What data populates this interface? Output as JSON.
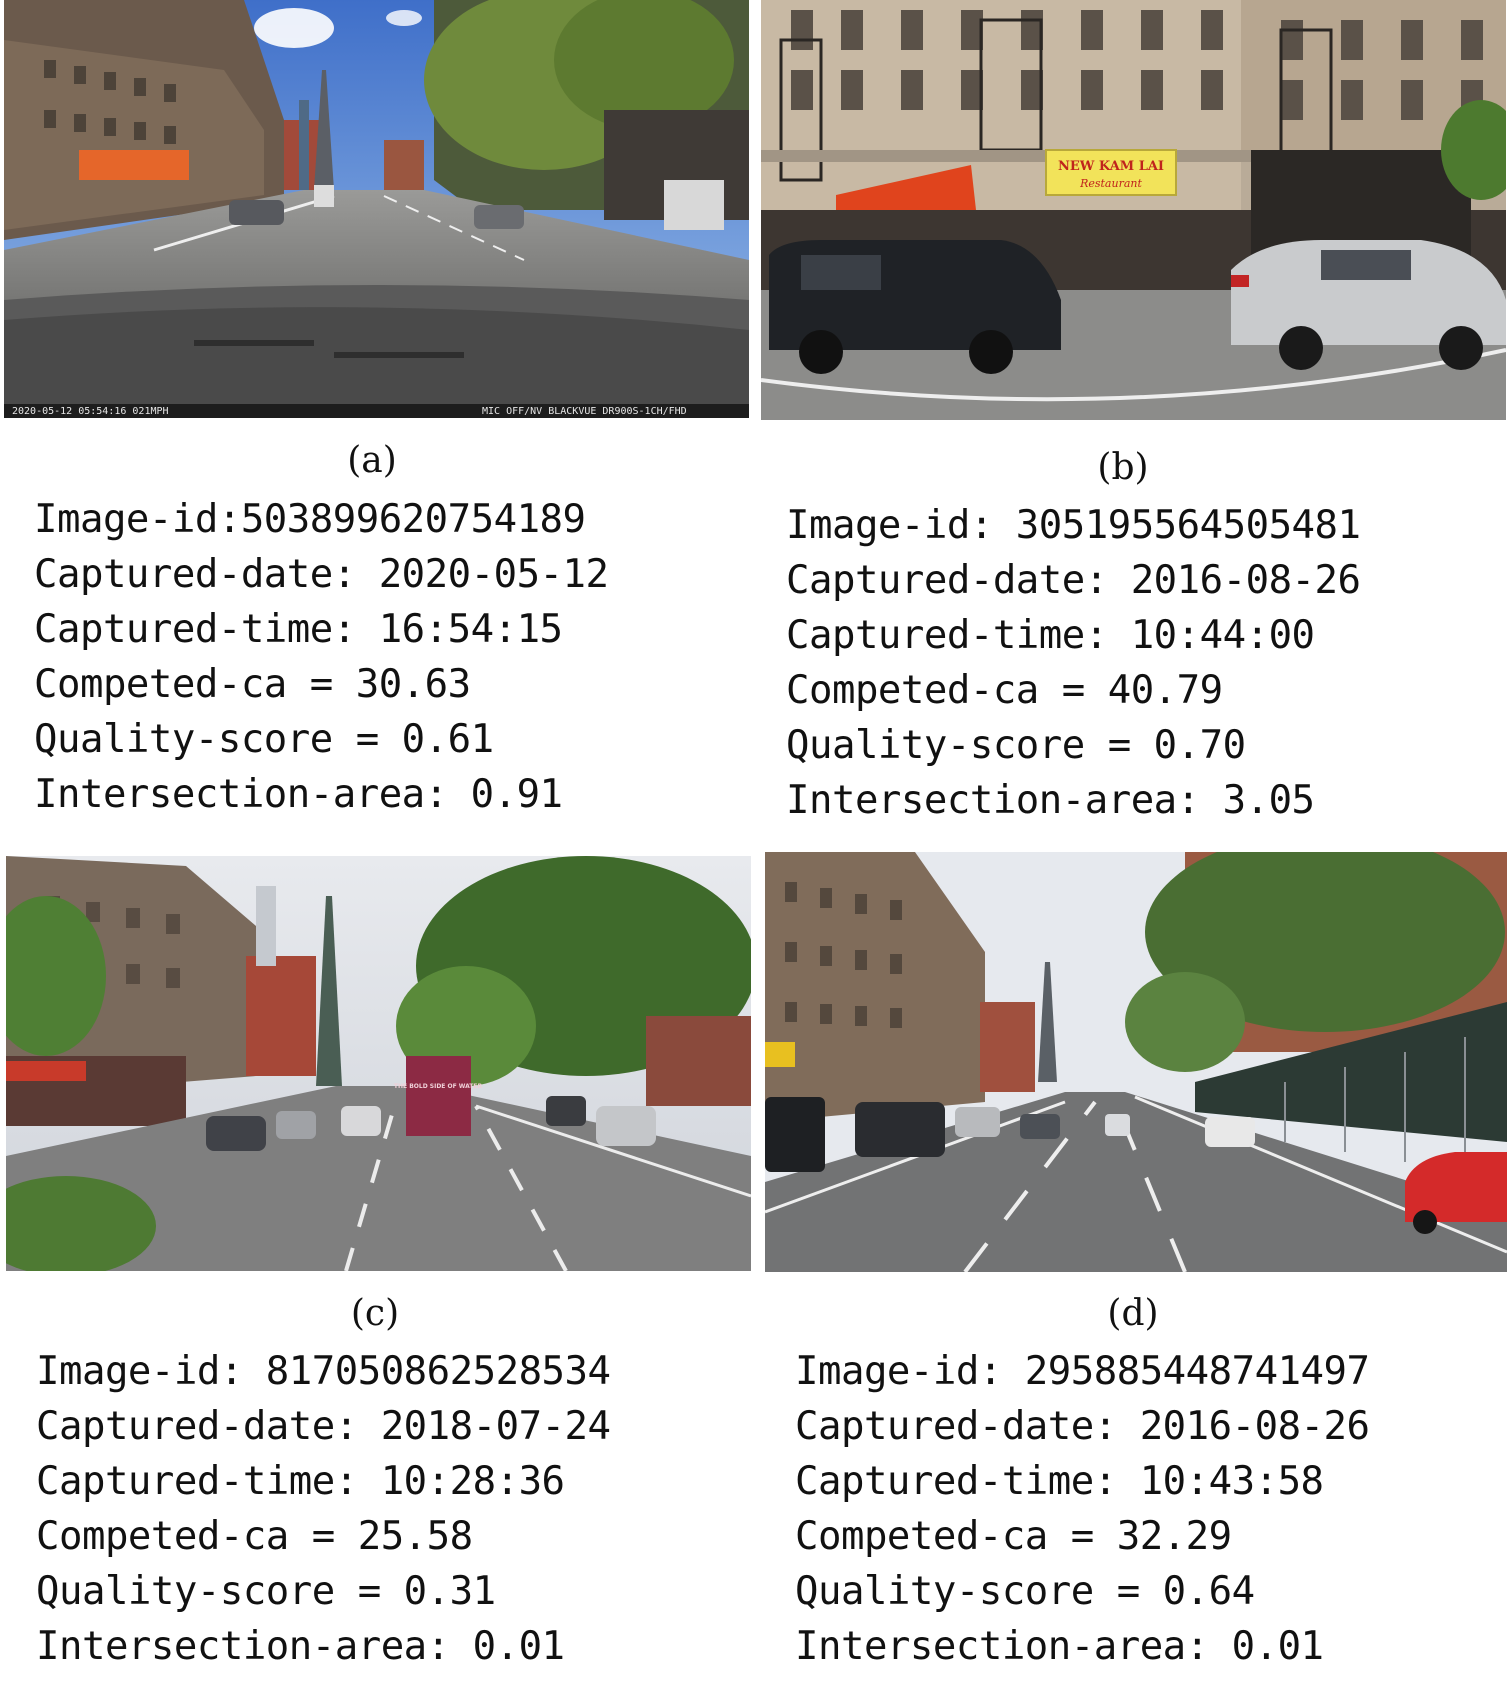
{
  "panels": [
    {
      "caption": "(a)",
      "photo_overlay": {
        "left": "2020-05-12 05:54:16   021MPH",
        "right": "MIC OFF/NV    BLACKVUE DR900S-1CH/FHD"
      },
      "lines": [
        "Image-id:503899620754189",
        "Captured-date: 2020-05-12",
        "Captured-time: 16:54:15",
        "Competed-ca = 30.63",
        "Quality-score = 0.61",
        "Intersection-area: 0.91"
      ]
    },
    {
      "caption": "(b)",
      "sign_text": "NEW KAM LAI",
      "sign_sub": "Restaurant",
      "lines": [
        "Image-id: 305195564505481",
        "Captured-date: 2016-08-26",
        "Captured-time: 10:44:00",
        "Competed-ca = 40.79",
        "Quality-score = 0.70",
        "Intersection-area: 3.05"
      ]
    },
    {
      "caption": "(c)",
      "truck_text": "THE BOLD SIDE OF WATER",
      "lines": [
        "Image-id: 817050862528534",
        "Captured-date: 2018-07-24",
        "Captured-time: 10:28:36",
        "Competed-ca = 25.58",
        "Quality-score = 0.31",
        "Intersection-area: 0.01"
      ]
    },
    {
      "caption": "(d)",
      "lines": [
        "Image-id: 295885448741497",
        "Captured-date: 2016-08-26",
        "Captured-time: 10:43:58",
        "Competed-ca = 32.29",
        "Quality-score = 0.64",
        "Intersection-area: 0.01"
      ]
    }
  ]
}
